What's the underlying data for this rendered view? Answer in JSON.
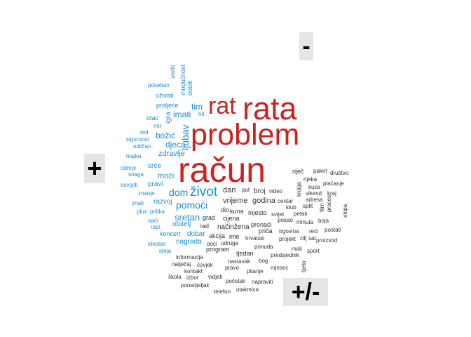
{
  "controls": {
    "zoom_out_label": "-",
    "zoom_in_label": "+",
    "toggle_label": "+/-"
  },
  "colors": {
    "large": "#cc2222",
    "medium": "#1a8ccc",
    "small": "#333333"
  },
  "words": [
    {
      "text": "račun",
      "tier": "large"
    },
    {
      "text": "problem",
      "tier": "large"
    },
    {
      "text": "rata",
      "tier": "large"
    },
    {
      "text": "rat",
      "tier": "large"
    },
    {
      "text": "život",
      "tier": "medium"
    },
    {
      "text": "dom",
      "tier": "medium"
    },
    {
      "text": "pomoći",
      "tier": "medium"
    },
    {
      "text": "sretan",
      "tier": "medium"
    },
    {
      "text": "ljubav",
      "tier": "medium"
    },
    {
      "text": "djeca",
      "tier": "medium"
    },
    {
      "text": "božić",
      "tier": "medium"
    },
    {
      "text": "imati",
      "tier": "medium"
    },
    {
      "text": "tim",
      "tier": "medium"
    },
    {
      "text": "zdravlje",
      "tier": "medium"
    },
    {
      "text": "srce",
      "tier": "medium"
    },
    {
      "text": "moći",
      "tier": "medium"
    },
    {
      "text": "pravi",
      "tier": "medium"
    },
    {
      "text": "razvoj",
      "tier": "medium"
    },
    {
      "text": "obitelj",
      "tier": "medium"
    },
    {
      "text": "dobar",
      "tier": "medium"
    },
    {
      "text": "nagrada",
      "tier": "medium"
    },
    {
      "text": "koncert",
      "tier": "medium"
    },
    {
      "text": "igra",
      "tier": "medium"
    },
    {
      "text": "vratiti",
      "tier": "medium"
    },
    {
      "text": "mogućnost",
      "tier": "medium"
    },
    {
      "text": "dobiti",
      "tier": "medium"
    },
    {
      "text": "poseban",
      "tier": "medium"
    },
    {
      "text": "uživati",
      "tier": "medium"
    },
    {
      "text": "proljeće",
      "tier": "medium"
    },
    {
      "text": "otac",
      "tier": "medium"
    },
    {
      "text": "hit",
      "tier": "medium"
    },
    {
      "text": "mir",
      "tier": "medium"
    },
    {
      "text": "red",
      "tier": "medium"
    },
    {
      "text": "sigurnost",
      "tier": "medium"
    },
    {
      "text": "odličan",
      "tier": "medium"
    },
    {
      "text": "majka",
      "tier": "medium"
    },
    {
      "text": "odmor",
      "tier": "medium"
    },
    {
      "text": "snaga",
      "tier": "medium"
    },
    {
      "text": "osvojiti",
      "tier": "medium"
    },
    {
      "text": "znanje",
      "tier": "medium"
    },
    {
      "text": "znati",
      "tier": "medium"
    },
    {
      "text": "plus",
      "tier": "medium"
    },
    {
      "text": "prilika",
      "tier": "medium"
    },
    {
      "text": "naći",
      "tier": "medium"
    },
    {
      "text": "rast",
      "tier": "medium"
    },
    {
      "text": "idealan",
      "tier": "medium"
    },
    {
      "text": "ideja",
      "tier": "medium"
    },
    {
      "text": "vrijeme",
      "tier": "small"
    },
    {
      "text": "godina",
      "tier": "small"
    },
    {
      "text": "dan",
      "tier": "small"
    },
    {
      "text": "broj",
      "tier": "small"
    },
    {
      "text": "put",
      "tier": "small"
    },
    {
      "text": "video",
      "tier": "small"
    },
    {
      "text": "riječ",
      "tier": "small"
    },
    {
      "text": "paket",
      "tier": "small"
    },
    {
      "text": "društvo",
      "tier": "small"
    },
    {
      "text": "rijeka",
      "tier": "small"
    },
    {
      "text": "knjiga",
      "tier": "small"
    },
    {
      "text": "kuća",
      "tier": "small"
    },
    {
      "text": "plaćanje",
      "tier": "small"
    },
    {
      "text": "vikend",
      "tier": "small"
    },
    {
      "text": "kraj",
      "tier": "small"
    },
    {
      "text": "adresa",
      "tier": "small"
    },
    {
      "text": "centar",
      "tier": "small"
    },
    {
      "text": "split",
      "tier": "small"
    },
    {
      "text": "film",
      "tier": "small"
    },
    {
      "text": "proces",
      "tier": "small"
    },
    {
      "text": "ekipa",
      "tier": "small"
    },
    {
      "text": "klub",
      "tier": "small"
    },
    {
      "text": "petak",
      "tier": "small"
    },
    {
      "text": "boja",
      "tier": "small"
    },
    {
      "text": "svijet",
      "tier": "small"
    },
    {
      "text": "mjesto",
      "tier": "small"
    },
    {
      "text": "dio",
      "tier": "small"
    },
    {
      "text": "kuna",
      "tier": "small"
    },
    {
      "text": "grad",
      "tier": "small"
    },
    {
      "text": "cijena",
      "tier": "small"
    },
    {
      "text": "posao",
      "tier": "small"
    },
    {
      "text": "minuta",
      "tier": "small"
    },
    {
      "text": "rad",
      "tier": "small"
    },
    {
      "text": "načinžena",
      "tier": "small"
    },
    {
      "text": "pronaći",
      "tier": "small"
    },
    {
      "text": "priča",
      "tier": "small"
    },
    {
      "text": "reći",
      "tier": "small"
    },
    {
      "text": "postati",
      "tier": "small"
    },
    {
      "text": "akcija",
      "tier": "small"
    },
    {
      "text": "ime",
      "tier": "small"
    },
    {
      "text": "hrvatski",
      "tier": "small"
    },
    {
      "text": "trgovina",
      "tier": "small"
    },
    {
      "text": "projekt",
      "tier": "small"
    },
    {
      "text": "cilj",
      "tier": "small"
    },
    {
      "text": "sat",
      "tier": "small"
    },
    {
      "text": "proizvod",
      "tier": "small"
    },
    {
      "text": "doći",
      "tier": "small"
    },
    {
      "text": "udruga",
      "tier": "small"
    },
    {
      "text": "ponuda",
      "tier": "small"
    },
    {
      "text": "mali",
      "tier": "small"
    },
    {
      "text": "sport",
      "tier": "small"
    },
    {
      "text": "program",
      "tier": "small"
    },
    {
      "text": "tjedan",
      "tier": "small"
    },
    {
      "text": "predsjednik",
      "tier": "small"
    },
    {
      "text": "informacija",
      "tier": "small"
    },
    {
      "text": "nastavak",
      "tier": "small"
    },
    {
      "text": "bog",
      "tier": "small"
    },
    {
      "text": "natječaj",
      "tier": "small"
    },
    {
      "text": "čovjek",
      "tier": "small"
    },
    {
      "text": "pravo",
      "tier": "small"
    },
    {
      "text": "mjesec",
      "tier": "small"
    },
    {
      "text": "tijelo",
      "tier": "small"
    },
    {
      "text": "kontakt",
      "tier": "small"
    },
    {
      "text": "pitanje",
      "tier": "small"
    },
    {
      "text": "škola",
      "tier": "small"
    },
    {
      "text": "izbor",
      "tier": "small"
    },
    {
      "text": "vidjeti",
      "tier": "small"
    },
    {
      "text": "početak",
      "tier": "small"
    },
    {
      "text": "napraviti",
      "tier": "small"
    },
    {
      "text": "ponedjeljak",
      "tier": "small"
    },
    {
      "text": "telefon",
      "tier": "small"
    },
    {
      "text": "utakmica",
      "tier": "small"
    }
  ]
}
